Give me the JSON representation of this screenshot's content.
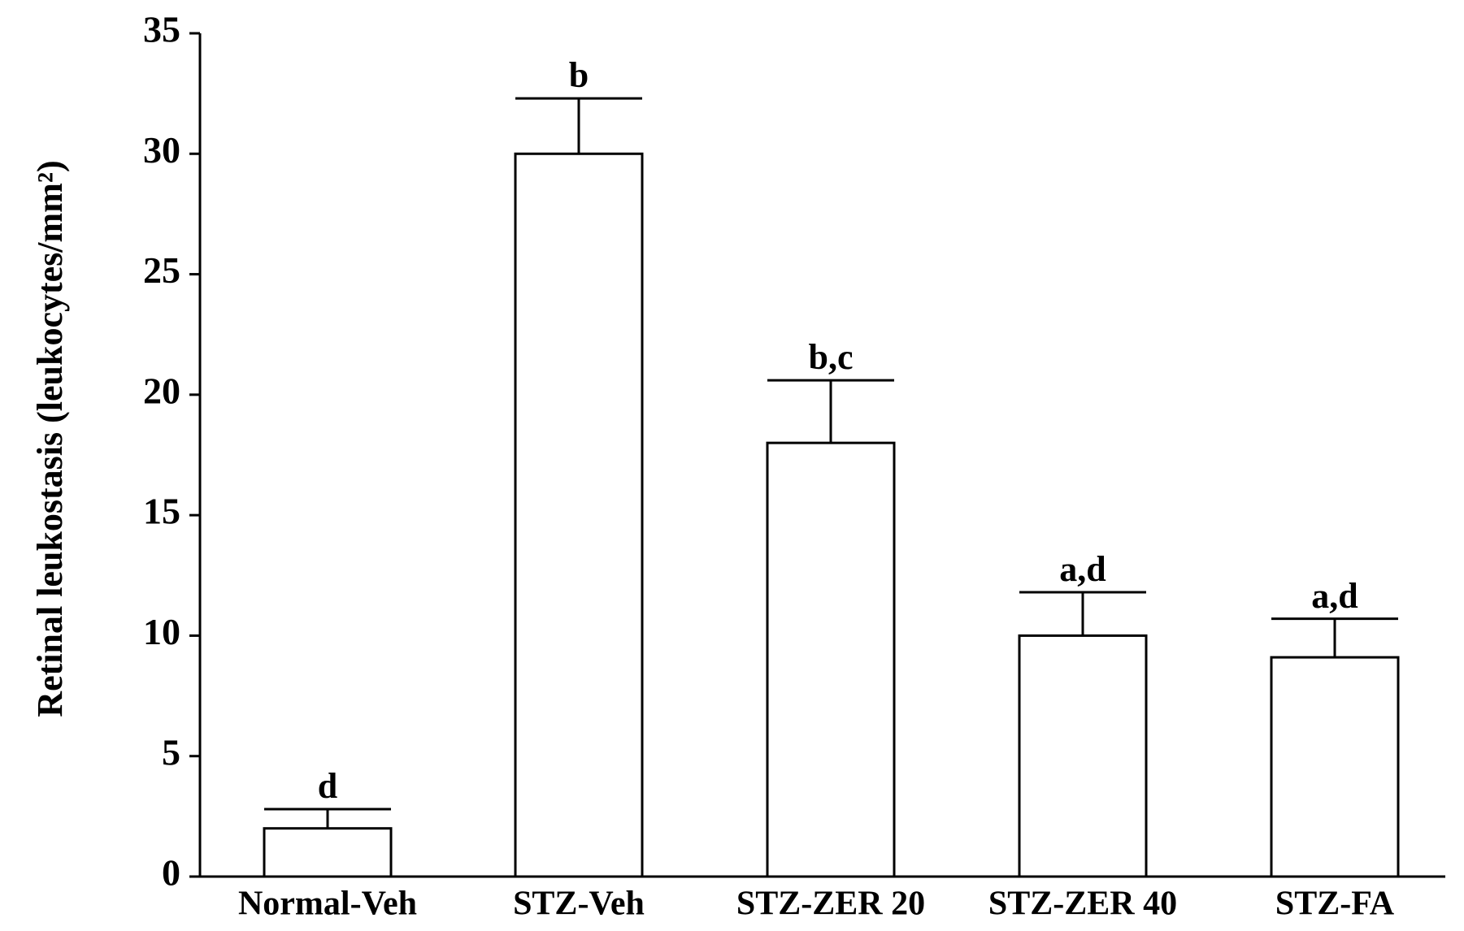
{
  "chart_data": {
    "type": "bar",
    "y_label": "Retinal leukostasis (leukocytes/mm²)",
    "categories": [
      "Normal-Veh",
      "STZ-Veh",
      "STZ-ZER 20",
      "STZ-ZER 40",
      "STZ-FA"
    ],
    "values": [
      2.0,
      30.0,
      18.0,
      10.0,
      9.1
    ],
    "errors": [
      0.8,
      2.3,
      2.6,
      1.8,
      1.6
    ],
    "annotations": [
      "d",
      "b",
      "b,c",
      "a,d",
      "a,d"
    ],
    "color": "#ffffff",
    "ylim": [
      0,
      35
    ],
    "yticks": [
      0,
      5,
      10,
      15,
      20,
      25,
      30,
      35
    ],
    "grid": false
  }
}
